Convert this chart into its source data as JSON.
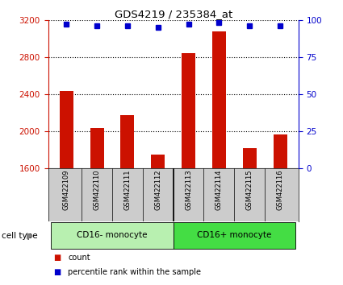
{
  "title": "GDS4219 / 235384_at",
  "samples": [
    "GSM422109",
    "GSM422110",
    "GSM422111",
    "GSM422112",
    "GSM422113",
    "GSM422114",
    "GSM422115",
    "GSM422116"
  ],
  "counts": [
    2430,
    2030,
    2170,
    1750,
    2840,
    3080,
    1820,
    1960
  ],
  "percentiles": [
    97,
    96,
    96,
    95,
    97,
    98,
    96,
    96
  ],
  "ylim_left": [
    1600,
    3200
  ],
  "ylim_right": [
    0,
    100
  ],
  "yticks_left": [
    1600,
    2000,
    2400,
    2800,
    3200
  ],
  "yticks_right": [
    0,
    25,
    50,
    75,
    100
  ],
  "groups": [
    {
      "label": "CD16- monocyte",
      "start": 0,
      "end": 4,
      "color": "#b8f0b0"
    },
    {
      "label": "CD16+ monocyte",
      "start": 4,
      "end": 8,
      "color": "#44dd44"
    }
  ],
  "bar_color": "#cc1100",
  "dot_color": "#0000cc",
  "bar_width": 0.45,
  "tick_color_left": "#cc1100",
  "tick_color_right": "#0000cc",
  "bg_plot": "#ffffff",
  "bg_sample_labels": "#cccccc",
  "cell_type_label": "cell type",
  "legend_count": "count",
  "legend_pct": "percentile rank within the sample"
}
